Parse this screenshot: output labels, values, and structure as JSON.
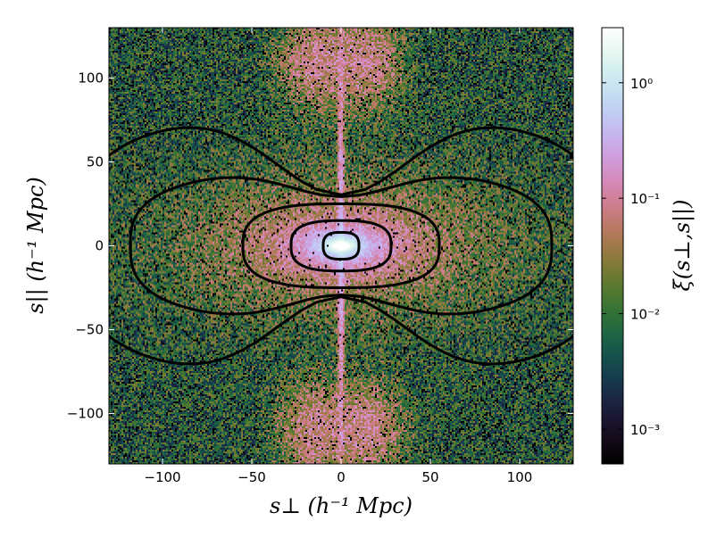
{
  "chart_data": {
    "type": "heatmap",
    "title": "",
    "xlabel": "s⊥ (h⁻¹ Mpc)",
    "ylabel": "s|| (h⁻¹ Mpc)",
    "colorbar_label": "ξ(s⊥,s||)",
    "colormap": "cubehelix",
    "color_scale": "log",
    "xlim": [
      -130,
      130
    ],
    "ylim": [
      -130,
      130
    ],
    "clim": [
      0.0005,
      3.0
    ],
    "x_ticks": [
      -100,
      -50,
      0,
      50,
      100
    ],
    "x_tick_labels": [
      "−100",
      "−50",
      "0",
      "50",
      "100"
    ],
    "y_ticks": [
      -100,
      -50,
      0,
      50,
      100
    ],
    "y_tick_labels": [
      "−100",
      "−50",
      "0",
      "50",
      "100"
    ],
    "colorbar_ticks": [
      0.001,
      0.01,
      0.1,
      1
    ],
    "colorbar_tick_labels": [
      "10⁻³",
      "10⁻²",
      "10⁻¹",
      "10⁰"
    ],
    "contour_levels": [
      0.01,
      0.03,
      0.1,
      0.3,
      1.0,
      2.0
    ],
    "contour_color": "#000000",
    "grid": false
  }
}
